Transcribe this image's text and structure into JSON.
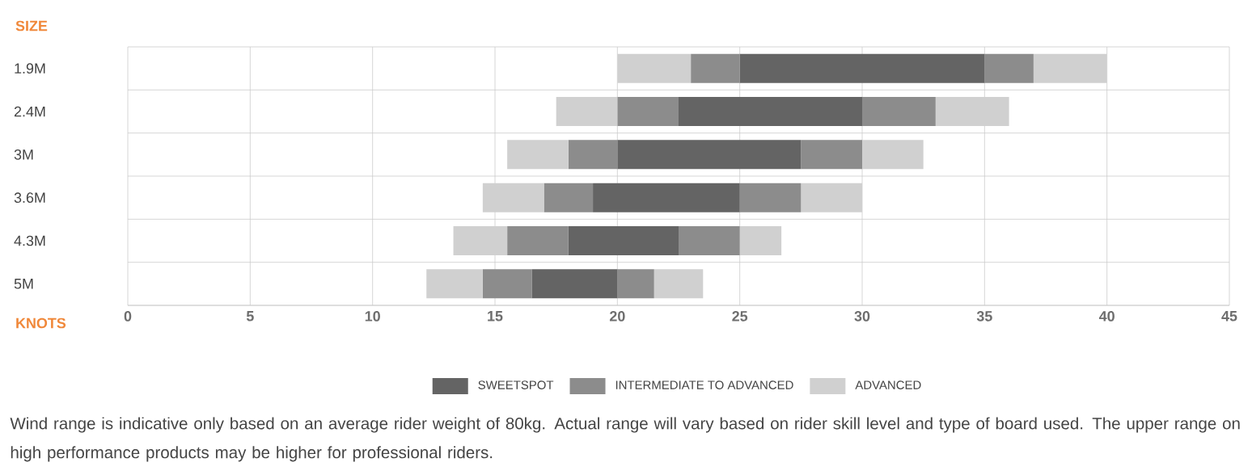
{
  "chart_data": {
    "type": "bar",
    "orientation": "horizontal",
    "ylabel": "SIZE",
    "xlabel": "KNOTS",
    "categories": [
      "1.9M",
      "2.4M",
      "3M",
      "3.6M",
      "4.3M",
      "5M"
    ],
    "series": [
      {
        "name": "ADVANCED",
        "color": "#d0d0d0",
        "base": [
          20,
          17.5,
          15.5,
          14.5,
          13.3,
          12.2
        ],
        "values": [
          3,
          2.5,
          2.5,
          2.5,
          2.2,
          2.3
        ]
      },
      {
        "name": "INTERMEDIATE TO ADVANCED",
        "color": "#8c8c8c",
        "base": [
          23,
          20,
          18,
          17,
          15.5,
          14.5
        ],
        "values": [
          2,
          2.5,
          2,
          2,
          2.5,
          2
        ]
      },
      {
        "name": "SWEETSPOT",
        "color": "#646464",
        "base": [
          25,
          22.5,
          20,
          19,
          18,
          16.5
        ],
        "values": [
          10,
          7.5,
          7.5,
          6,
          4.5,
          3.5
        ]
      },
      {
        "color": "#8c8c8c",
        "base": [
          35,
          30,
          27.5,
          25,
          22.5,
          20
        ],
        "values": [
          2,
          3,
          2.5,
          2.5,
          2.5,
          1.5
        ]
      },
      {
        "color": "#d0d0d0",
        "base": [
          37,
          33,
          30,
          27.5,
          25,
          21.5
        ],
        "values": [
          3,
          3,
          2.5,
          2.5,
          1.7,
          2
        ]
      }
    ],
    "xlim": [
      0,
      45
    ],
    "xticks": [
      0,
      5,
      10,
      15,
      20,
      25,
      30,
      35,
      40,
      45
    ],
    "grid": true,
    "legend": "bottom",
    "annotations": [
      "Wind range is indicative only based on an average rider weight of 80kg. Actual range will vary based on rider skill level and type of board used. The upper range on high performance products may be higher for professional riders."
    ]
  }
}
